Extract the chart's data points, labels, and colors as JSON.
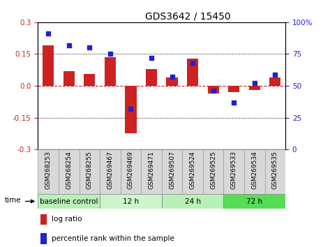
{
  "title": "GDS3642 / 15450",
  "categories": [
    "GSM268253",
    "GSM268254",
    "GSM268255",
    "GSM269467",
    "GSM269469",
    "GSM269471",
    "GSM269507",
    "GSM269524",
    "GSM269525",
    "GSM269533",
    "GSM269534",
    "GSM269535"
  ],
  "log_ratio": [
    0.19,
    0.07,
    0.055,
    0.135,
    -0.225,
    0.08,
    0.04,
    0.13,
    -0.035,
    -0.03,
    -0.02,
    0.04
  ],
  "percentile_rank": [
    91,
    82,
    80,
    75,
    32,
    72,
    57,
    68,
    46,
    37,
    52,
    59
  ],
  "groups": [
    {
      "label": "baseline control",
      "start": 0,
      "end": 3
    },
    {
      "label": "12 h",
      "start": 3,
      "end": 6
    },
    {
      "label": "24 h",
      "start": 6,
      "end": 9
    },
    {
      "label": "72 h",
      "start": 9,
      "end": 12
    }
  ],
  "group_colors": [
    "#b8f0b8",
    "#ccf5cc",
    "#b8f0b8",
    "#55dd55"
  ],
  "bar_color": "#cc2222",
  "dot_color": "#2222cc",
  "ylim_left": [
    -0.3,
    0.3
  ],
  "ylim_right": [
    0,
    100
  ],
  "yticks_left": [
    -0.3,
    -0.15,
    0.0,
    0.15,
    0.3
  ],
  "yticks_right": [
    0,
    25,
    50,
    75,
    100
  ],
  "hlines": [
    -0.15,
    0.15
  ],
  "zero_line": 0.0,
  "background_color": "#ffffff"
}
